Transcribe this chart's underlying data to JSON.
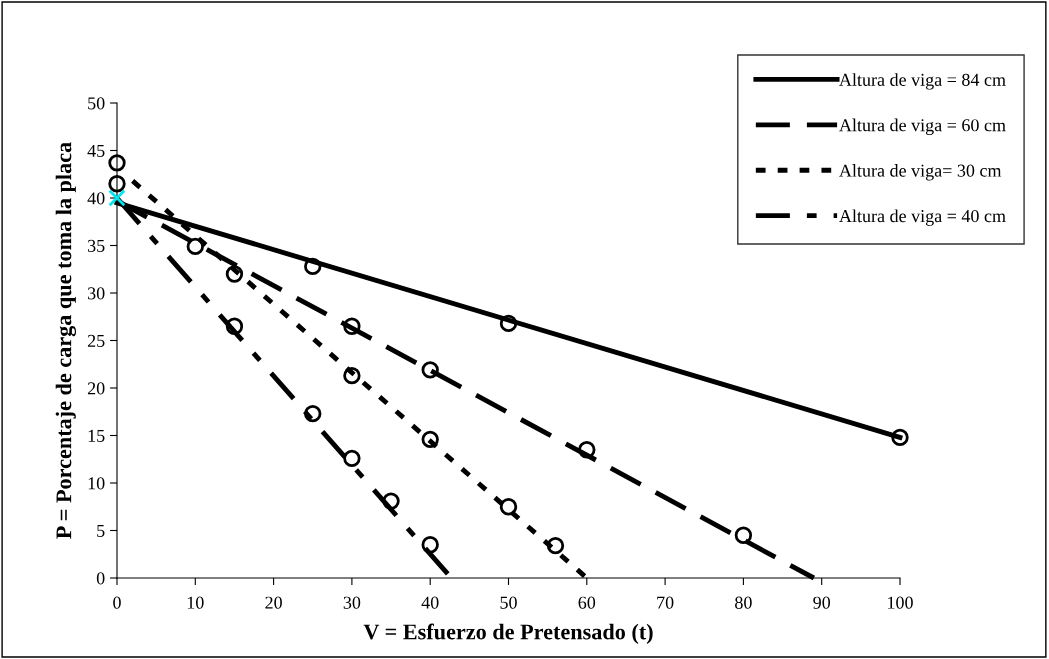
{
  "chart_data": {
    "type": "line",
    "xlabel": "V = Esfuerzo de Pretensado (t)",
    "ylabel": "P = Porcentaje de carga que toma la placa",
    "xlim": [
      0,
      100
    ],
    "xticks": [
      0,
      10,
      20,
      30,
      40,
      50,
      60,
      70,
      80,
      90,
      100
    ],
    "ylim": [
      0,
      50
    ],
    "yticks": [
      0,
      5,
      10,
      15,
      20,
      25,
      30,
      35,
      40,
      45,
      50
    ],
    "grid": false,
    "legend": "top right",
    "series": [
      {
        "name": "Altura de viga = 84 cm",
        "color": "#000000",
        "line_style": "solid",
        "marker": "none",
        "x": [
          0,
          100
        ],
        "values": [
          39.5,
          14.8
        ]
      },
      {
        "name": "Altura de viga = 60 cm",
        "color": "#000000",
        "line_style": "long_dash",
        "marker": "none",
        "x": [
          0,
          89
        ],
        "values": [
          39.7,
          0
        ]
      },
      {
        "name": "Altura de viga= 30 cm",
        "color": "#000000",
        "line_style": "dotted",
        "marker": "none",
        "x": [
          2,
          60
        ],
        "values": [
          41.8,
          0
        ]
      },
      {
        "name": "Altura de viga = 40 cm",
        "color": "#000000",
        "line_style": "dash_dot",
        "marker": "none",
        "x": [
          0,
          42.7
        ],
        "values": [
          40.0,
          0
        ]
      },
      {
        "type": "scatter",
        "color": "#000000",
        "marker": "circle",
        "x": [
          0,
          0,
          10,
          25,
          50,
          100
        ],
        "values": [
          43.7,
          41.5,
          34.9,
          32.8,
          26.8,
          14.8
        ]
      },
      {
        "type": "scatter",
        "color": "#000000",
        "marker": "circle",
        "x": [
          15,
          30,
          40,
          60,
          80
        ],
        "values": [
          32.0,
          26.5,
          21.9,
          13.5,
          4.5
        ]
      },
      {
        "type": "scatter",
        "color": "#000000",
        "marker": "circle",
        "x": [
          30,
          40,
          50,
          56
        ],
        "values": [
          21.3,
          14.6,
          7.5,
          3.4
        ]
      },
      {
        "type": "scatter",
        "color": "#000000",
        "marker": "circle",
        "x": [
          15,
          25,
          30,
          35,
          40
        ],
        "values": [
          26.5,
          17.3,
          12.6,
          8.1,
          3.5
        ]
      },
      {
        "type": "scatter",
        "color": "#00e5ee",
        "marker": "cross",
        "x": [
          0
        ],
        "values": [
          40.0
        ]
      }
    ]
  }
}
